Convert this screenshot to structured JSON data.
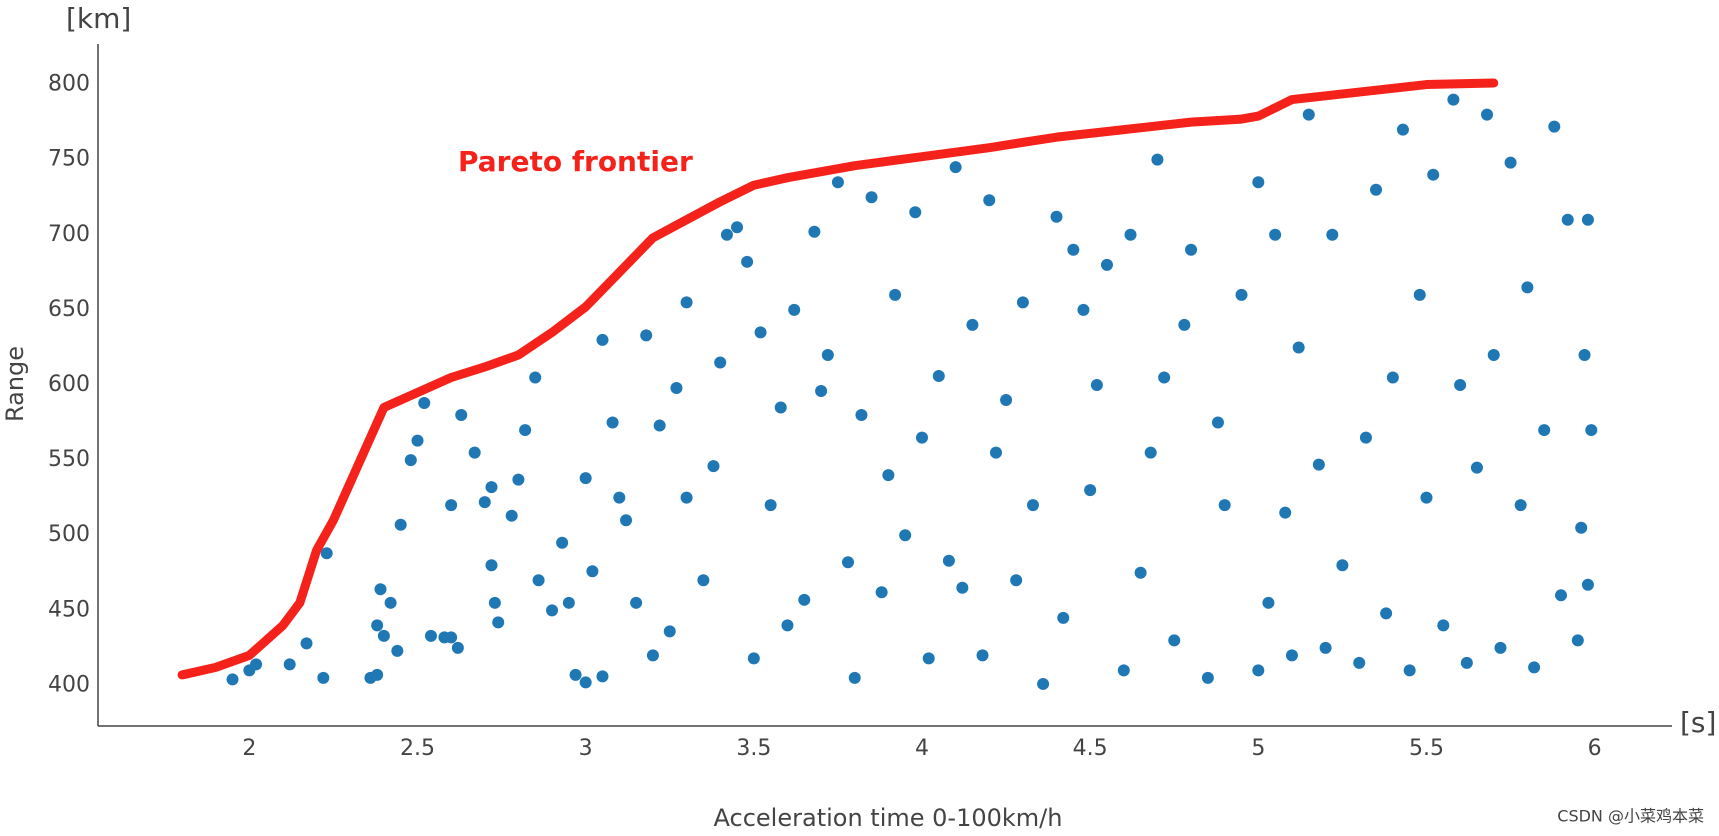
{
  "chart_data": {
    "type": "scatter",
    "xlabel": "Acceleration time 0-100km/h",
    "ylabel": "Range",
    "x_unit": "[s]",
    "y_unit": "[km]",
    "watermark": "CSDN @小菜鸡本菜",
    "xlim": [
      1.55,
      6.23
    ],
    "ylim": [
      373,
      827
    ],
    "xticks": [
      2,
      2.5,
      3,
      3.5,
      4,
      4.5,
      5,
      5.5,
      6
    ],
    "yticks": [
      400,
      450,
      500,
      550,
      600,
      650,
      700,
      750,
      800
    ],
    "grid": false,
    "series": [
      {
        "color": "#1f77b4",
        "mode": "markers",
        "x": [
          1.95,
          2.0,
          2.02,
          2.12,
          2.17,
          2.22,
          2.23,
          2.36,
          2.38,
          2.38,
          2.39,
          2.4,
          2.42,
          2.44,
          2.45,
          2.48,
          2.5,
          2.52,
          2.54,
          2.58,
          2.6,
          2.6,
          2.62,
          2.63,
          2.67,
          2.7,
          2.72,
          2.72,
          2.73,
          2.74,
          2.78,
          2.8,
          2.82,
          2.85,
          2.86,
          2.9,
          2.93,
          2.95,
          2.97,
          3.0,
          3.0,
          3.02,
          3.05,
          3.05,
          3.08,
          3.1,
          3.12,
          3.15,
          3.18,
          3.2,
          3.22,
          3.25,
          3.27,
          3.3,
          3.3,
          3.35,
          3.38,
          3.4,
          3.42,
          3.45,
          3.48,
          3.5,
          3.52,
          3.55,
          3.58,
          3.6,
          3.62,
          3.65,
          3.68,
          3.7,
          3.72,
          3.75,
          3.78,
          3.8,
          3.82,
          3.85,
          3.88,
          3.9,
          3.92,
          3.95,
          3.98,
          4.0,
          4.02,
          4.05,
          4.08,
          4.1,
          4.12,
          4.15,
          4.18,
          4.2,
          4.22,
          4.25,
          4.28,
          4.3,
          4.33,
          4.36,
          4.4,
          4.42,
          4.45,
          4.48,
          4.5,
          4.52,
          4.55,
          4.6,
          4.62,
          4.65,
          4.68,
          4.7,
          4.72,
          4.75,
          4.78,
          4.8,
          4.85,
          4.88,
          4.9,
          4.95,
          5.0,
          5.0,
          5.03,
          5.05,
          5.08,
          5.1,
          5.12,
          5.15,
          5.18,
          5.2,
          5.22,
          5.25,
          5.3,
          5.32,
          5.35,
          5.38,
          5.4,
          5.43,
          5.45,
          5.48,
          5.5,
          5.52,
          5.55,
          5.58,
          5.6,
          5.62,
          5.65,
          5.68,
          5.7,
          5.72,
          5.75,
          5.78,
          5.8,
          5.82,
          5.85,
          5.88,
          5.9,
          5.92,
          5.95,
          5.97,
          5.98,
          5.99,
          5.98,
          5.96
        ],
        "values": [
          404,
          410,
          414,
          414,
          428,
          405,
          488,
          405,
          407,
          440,
          464,
          433,
          455,
          423,
          507,
          550,
          563,
          588,
          433,
          432,
          520,
          432,
          425,
          580,
          555,
          522,
          532,
          480,
          455,
          442,
          513,
          537,
          570,
          605,
          470,
          450,
          495,
          455,
          407,
          402,
          538,
          476,
          406,
          630,
          575,
          525,
          510,
          455,
          633,
          420,
          573,
          436,
          598,
          525,
          655,
          470,
          546,
          615,
          700,
          705,
          682,
          418,
          635,
          520,
          585,
          440,
          650,
          457,
          702,
          596,
          620,
          735,
          482,
          405,
          580,
          725,
          462,
          540,
          660,
          500,
          715,
          565,
          418,
          606,
          483,
          745,
          465,
          640,
          420,
          723,
          555,
          590,
          470,
          655,
          520,
          401,
          712,
          445,
          690,
          650,
          530,
          600,
          680,
          410,
          700,
          475,
          555,
          750,
          605,
          430,
          640,
          690,
          405,
          575,
          520,
          660,
          410,
          735,
          455,
          700,
          515,
          420,
          625,
          780,
          547,
          425,
          700,
          480,
          415,
          565,
          730,
          448,
          605,
          770,
          410,
          660,
          525,
          740,
          440,
          790,
          600,
          415,
          545,
          780,
          620,
          425,
          748,
          520,
          665,
          412,
          570,
          772,
          460,
          710,
          430,
          620,
          710,
          570,
          467,
          505
        ]
      },
      {
        "name": "Pareto frontier",
        "color": "#f5221b",
        "mode": "line",
        "x": [
          1.8,
          1.9,
          2.0,
          2.1,
          2.15,
          2.2,
          2.25,
          2.3,
          2.35,
          2.4,
          2.5,
          2.6,
          2.7,
          2.8,
          2.9,
          3.0,
          3.1,
          3.2,
          3.3,
          3.4,
          3.5,
          3.6,
          3.8,
          4.0,
          4.2,
          4.4,
          4.6,
          4.8,
          4.95,
          5.0,
          5.1,
          5.3,
          5.5,
          5.7
        ],
        "values": [
          407,
          412,
          420,
          440,
          455,
          490,
          510,
          535,
          560,
          585,
          595,
          605,
          612,
          620,
          635,
          652,
          675,
          698,
          710,
          722,
          733,
          738,
          746,
          752,
          758,
          765,
          770,
          775,
          777,
          779,
          790,
          795,
          800,
          801
        ]
      }
    ]
  }
}
